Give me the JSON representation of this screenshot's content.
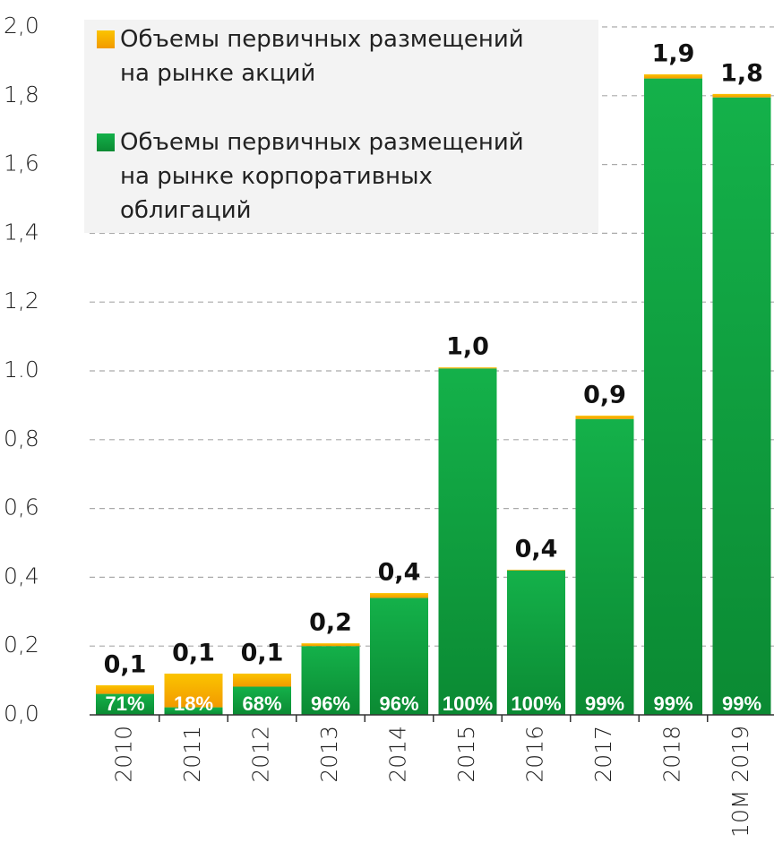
{
  "chart_data": {
    "type": "stacked-bar",
    "categories": [
      "2010",
      "2011",
      "2012",
      "2013",
      "2014",
      "2015",
      "2016",
      "2017",
      "2018",
      "10М 2019"
    ],
    "series": [
      {
        "name": "Объемы первичных размещений на рынке корпоративных облигаций",
        "color": "#0f9a3c",
        "values": [
          0.061,
          0.022,
          0.082,
          0.2,
          0.34,
          1.007,
          0.42,
          0.86,
          1.85,
          1.795
        ]
      },
      {
        "name": "Объемы первичных размещений на рынке акций",
        "color": "#f5a800",
        "values": [
          0.025,
          0.098,
          0.038,
          0.008,
          0.014,
          0.003,
          0.002,
          0.01,
          0.012,
          0.01
        ]
      }
    ],
    "totals": [
      0.086,
      0.12,
      0.12,
      0.208,
      0.354,
      1.01,
      0.422,
      0.87,
      1.862,
      1.805
    ],
    "total_labels": [
      "0,1",
      "0,1",
      "0,1",
      "0,2",
      "0,4",
      "1,0",
      "0,4",
      "0,9",
      "1,9",
      "1,8"
    ],
    "bond_shares": [
      71,
      18,
      68,
      96,
      96,
      100,
      100,
      99,
      99,
      99
    ],
    "bond_share_labels": [
      "71%",
      "18%",
      "68%",
      "96%",
      "96%",
      "100%",
      "100%",
      "99%",
      "99%",
      "99%"
    ],
    "ylim": [
      0,
      2
    ],
    "yticks": [
      {
        "value": 0,
        "label": "0,0"
      },
      {
        "value": 0.2,
        "label": "0,2"
      },
      {
        "value": 0.4,
        "label": "0,4"
      },
      {
        "value": 0.6,
        "label": "0,6"
      },
      {
        "value": 0.8,
        "label": "0,8"
      },
      {
        "value": 1.0,
        "label": "1.0"
      },
      {
        "value": 1.2,
        "label": "1,2"
      },
      {
        "value": 1.4,
        "label": "1,4"
      },
      {
        "value": 1.6,
        "label": "1,6"
      },
      {
        "value": 1.8,
        "label": "1,8"
      },
      {
        "value": 2.0,
        "label": "2,0"
      }
    ],
    "grid": true
  }
}
